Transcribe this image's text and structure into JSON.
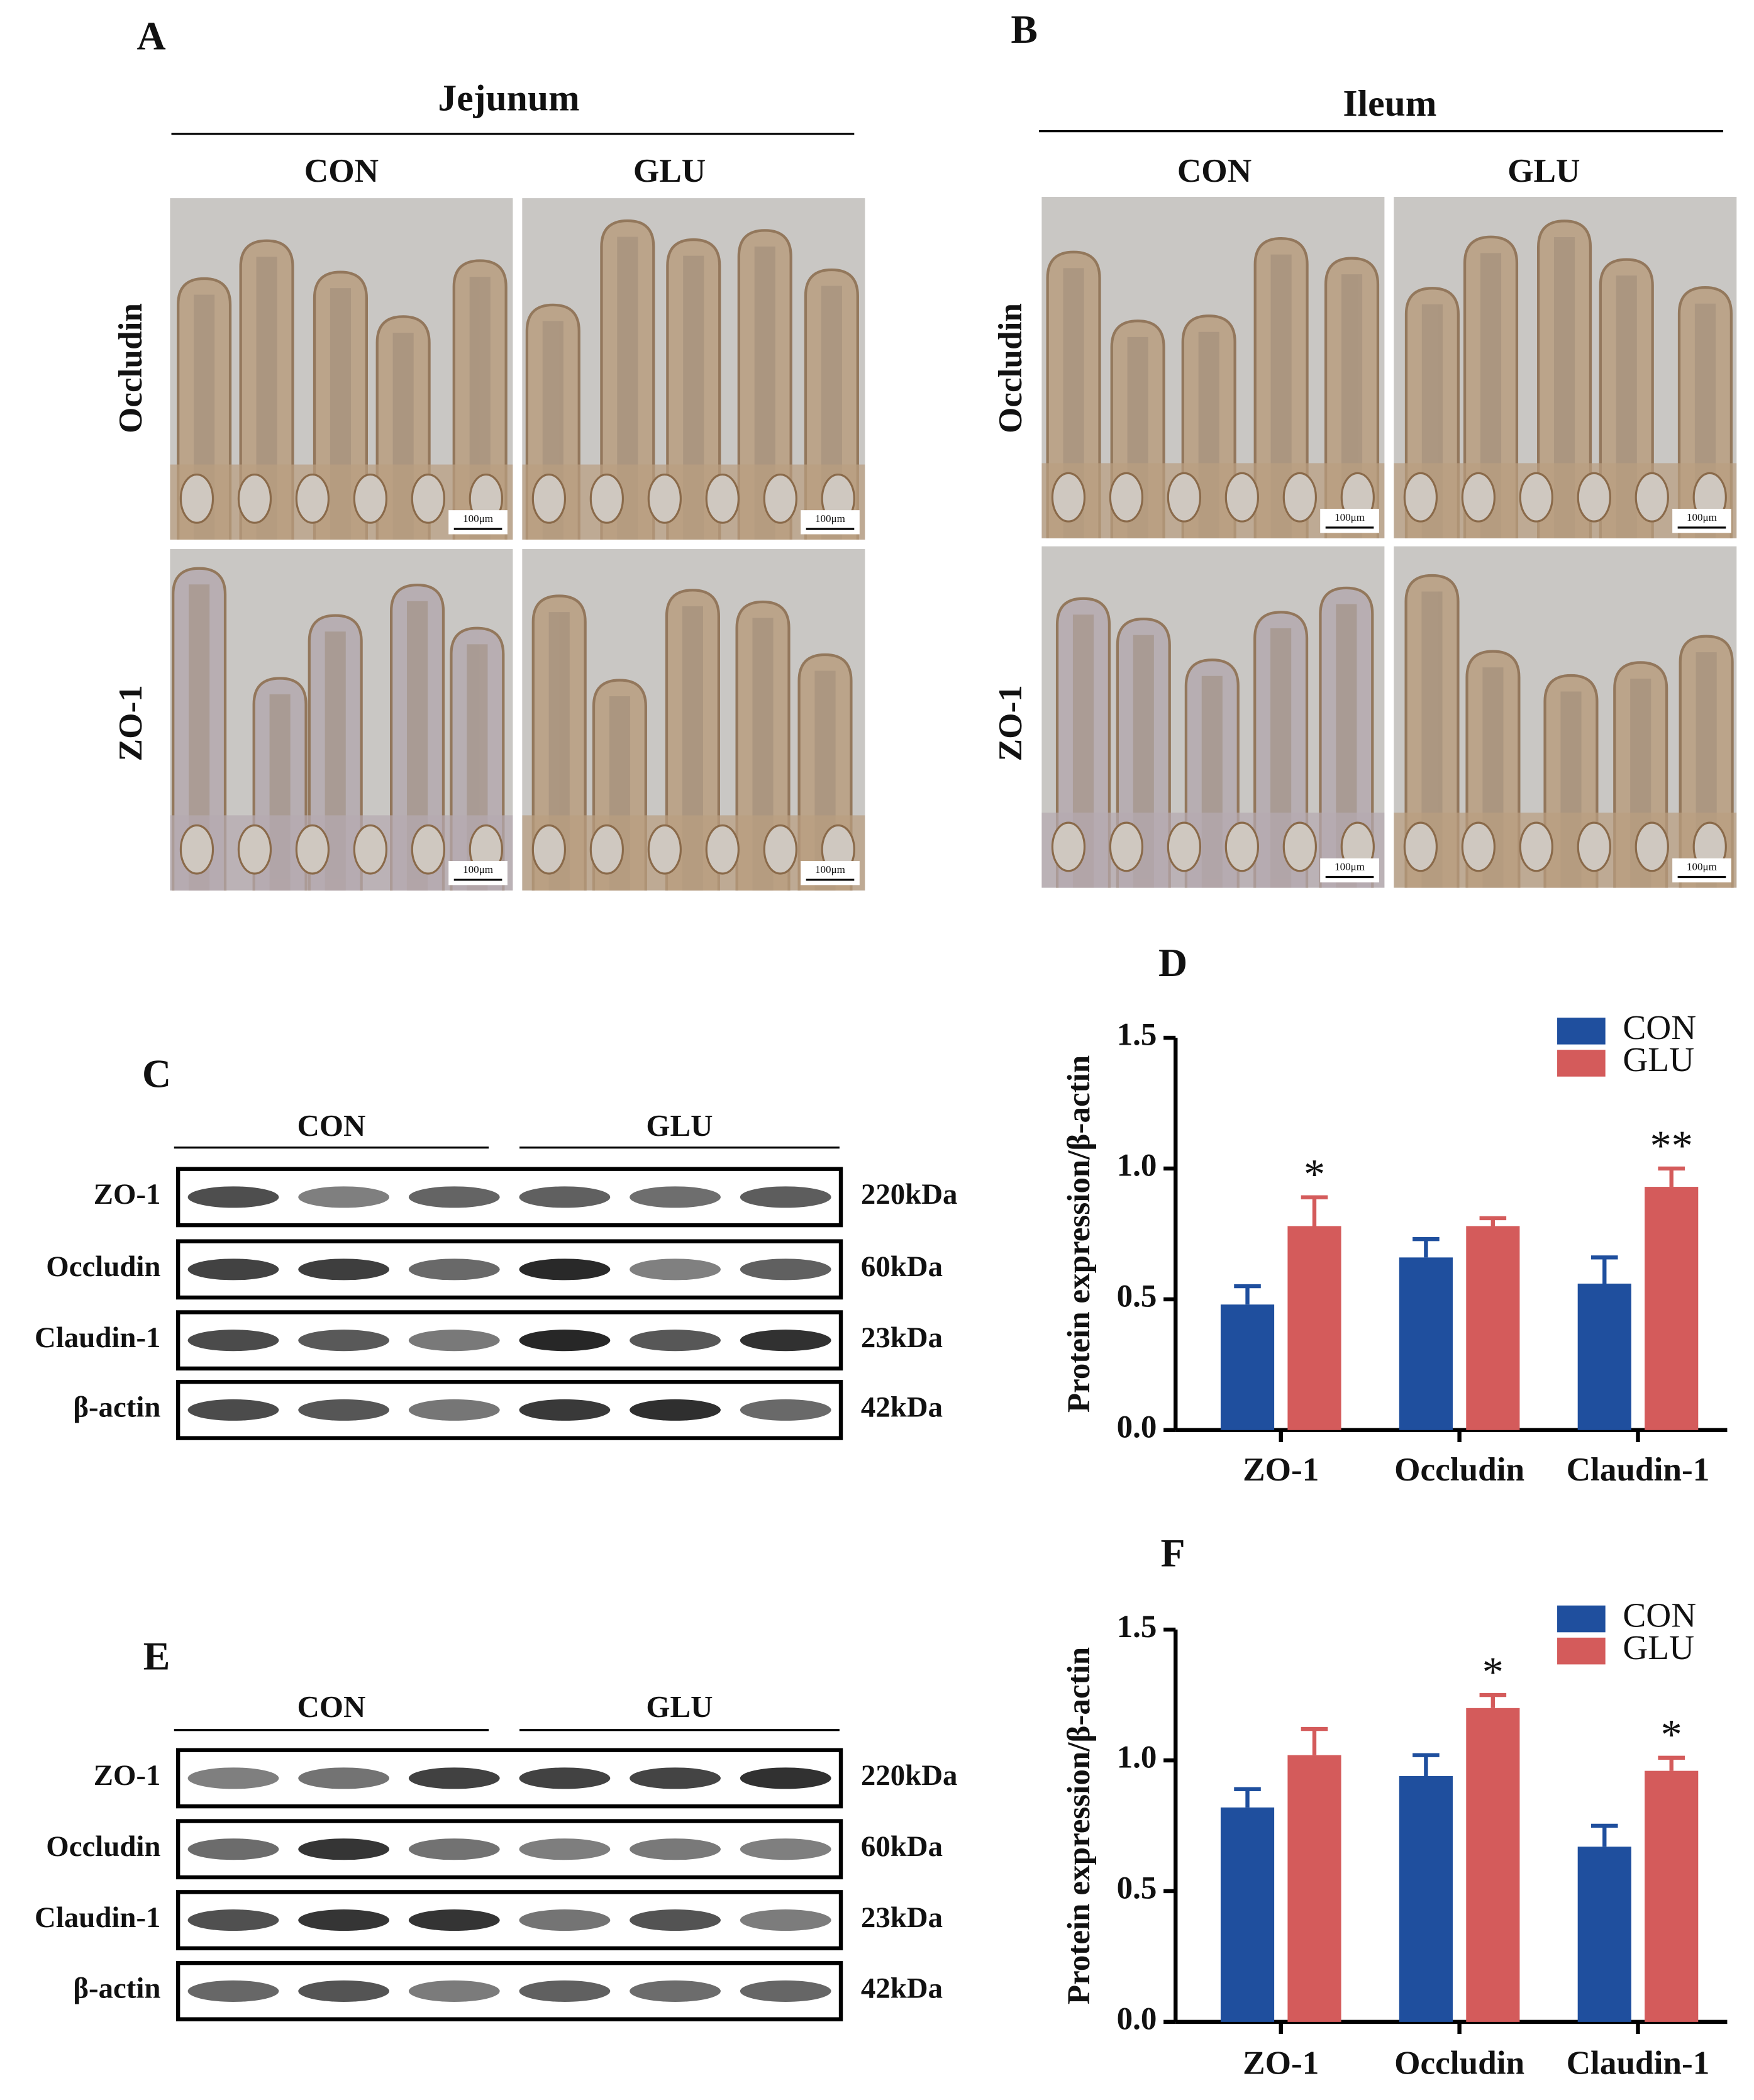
{
  "panels": [
    {
      "label": "A",
      "region": "Jejunum",
      "columns": [
        "CON",
        "GLU"
      ],
      "rows": [
        "Occludin",
        "ZO-1"
      ],
      "scale_bar": "100μm"
    },
    {
      "label": "B",
      "region": "Ileum",
      "columns": [
        "CON",
        "GLU"
      ],
      "rows": [
        "Occludin",
        "ZO-1"
      ],
      "scale_bar": "100μm"
    }
  ],
  "blots": [
    {
      "label": "C",
      "groups": [
        "CON",
        "GLU"
      ],
      "rows": [
        {
          "name": "ZO-1",
          "size": "220kDa"
        },
        {
          "name": "Occludin",
          "size": "60kDa"
        },
        {
          "name": "Claudin-1",
          "size": "23kDa"
        },
        {
          "name": "β-actin",
          "size": "42kDa"
        }
      ]
    },
    {
      "label": "E",
      "groups": [
        "CON",
        "GLU"
      ],
      "rows": [
        {
          "name": "ZO-1",
          "size": "220kDa"
        },
        {
          "name": "Occludin",
          "size": "60kDa"
        },
        {
          "name": "Claudin-1",
          "size": "23kDa"
        },
        {
          "name": "β-actin",
          "size": "42kDa"
        }
      ]
    }
  ],
  "chart_data": [
    {
      "type": "bar",
      "label": "D",
      "ylabel": "Protein expression/β-actin",
      "categories": [
        "ZO-1",
        "Occludin",
        "Claudin-1"
      ],
      "series": [
        {
          "name": "CON",
          "color": "#1f4f9e",
          "values": [
            0.48,
            0.66,
            0.56
          ],
          "errors": [
            0.07,
            0.07,
            0.1
          ]
        },
        {
          "name": "GLU",
          "color": "#d45b5b",
          "values": [
            0.78,
            0.78,
            0.93
          ],
          "errors": [
            0.11,
            0.03,
            0.07
          ],
          "significance": [
            "*",
            null,
            "**"
          ]
        }
      ],
      "ylim": [
        0,
        1.5
      ],
      "yticks": [
        {
          "value": 0,
          "label": "0.0"
        },
        0.5,
        {
          "value": 1,
          "label": "1.0"
        },
        1.5
      ],
      "legend": "upper right"
    },
    {
      "type": "bar",
      "label": "F",
      "ylabel": "Protein expression/β-actin",
      "categories": [
        "ZO-1",
        "Occludin",
        "Claudin-1"
      ],
      "series": [
        {
          "name": "CON",
          "color": "#1f4f9e",
          "values": [
            0.82,
            0.94,
            0.67
          ],
          "errors": [
            0.07,
            0.08,
            0.08
          ]
        },
        {
          "name": "GLU",
          "color": "#d45b5b",
          "values": [
            1.02,
            1.2,
            0.96
          ],
          "errors": [
            0.1,
            0.05,
            0.05
          ],
          "significance": [
            null,
            "*",
            "*"
          ]
        }
      ],
      "ylim": [
        0,
        1.5
      ],
      "yticks": [
        {
          "value": 0,
          "label": "0.0"
        },
        0.5,
        {
          "value": 1,
          "label": "1.0"
        },
        1.5
      ],
      "legend": "upper right"
    }
  ]
}
